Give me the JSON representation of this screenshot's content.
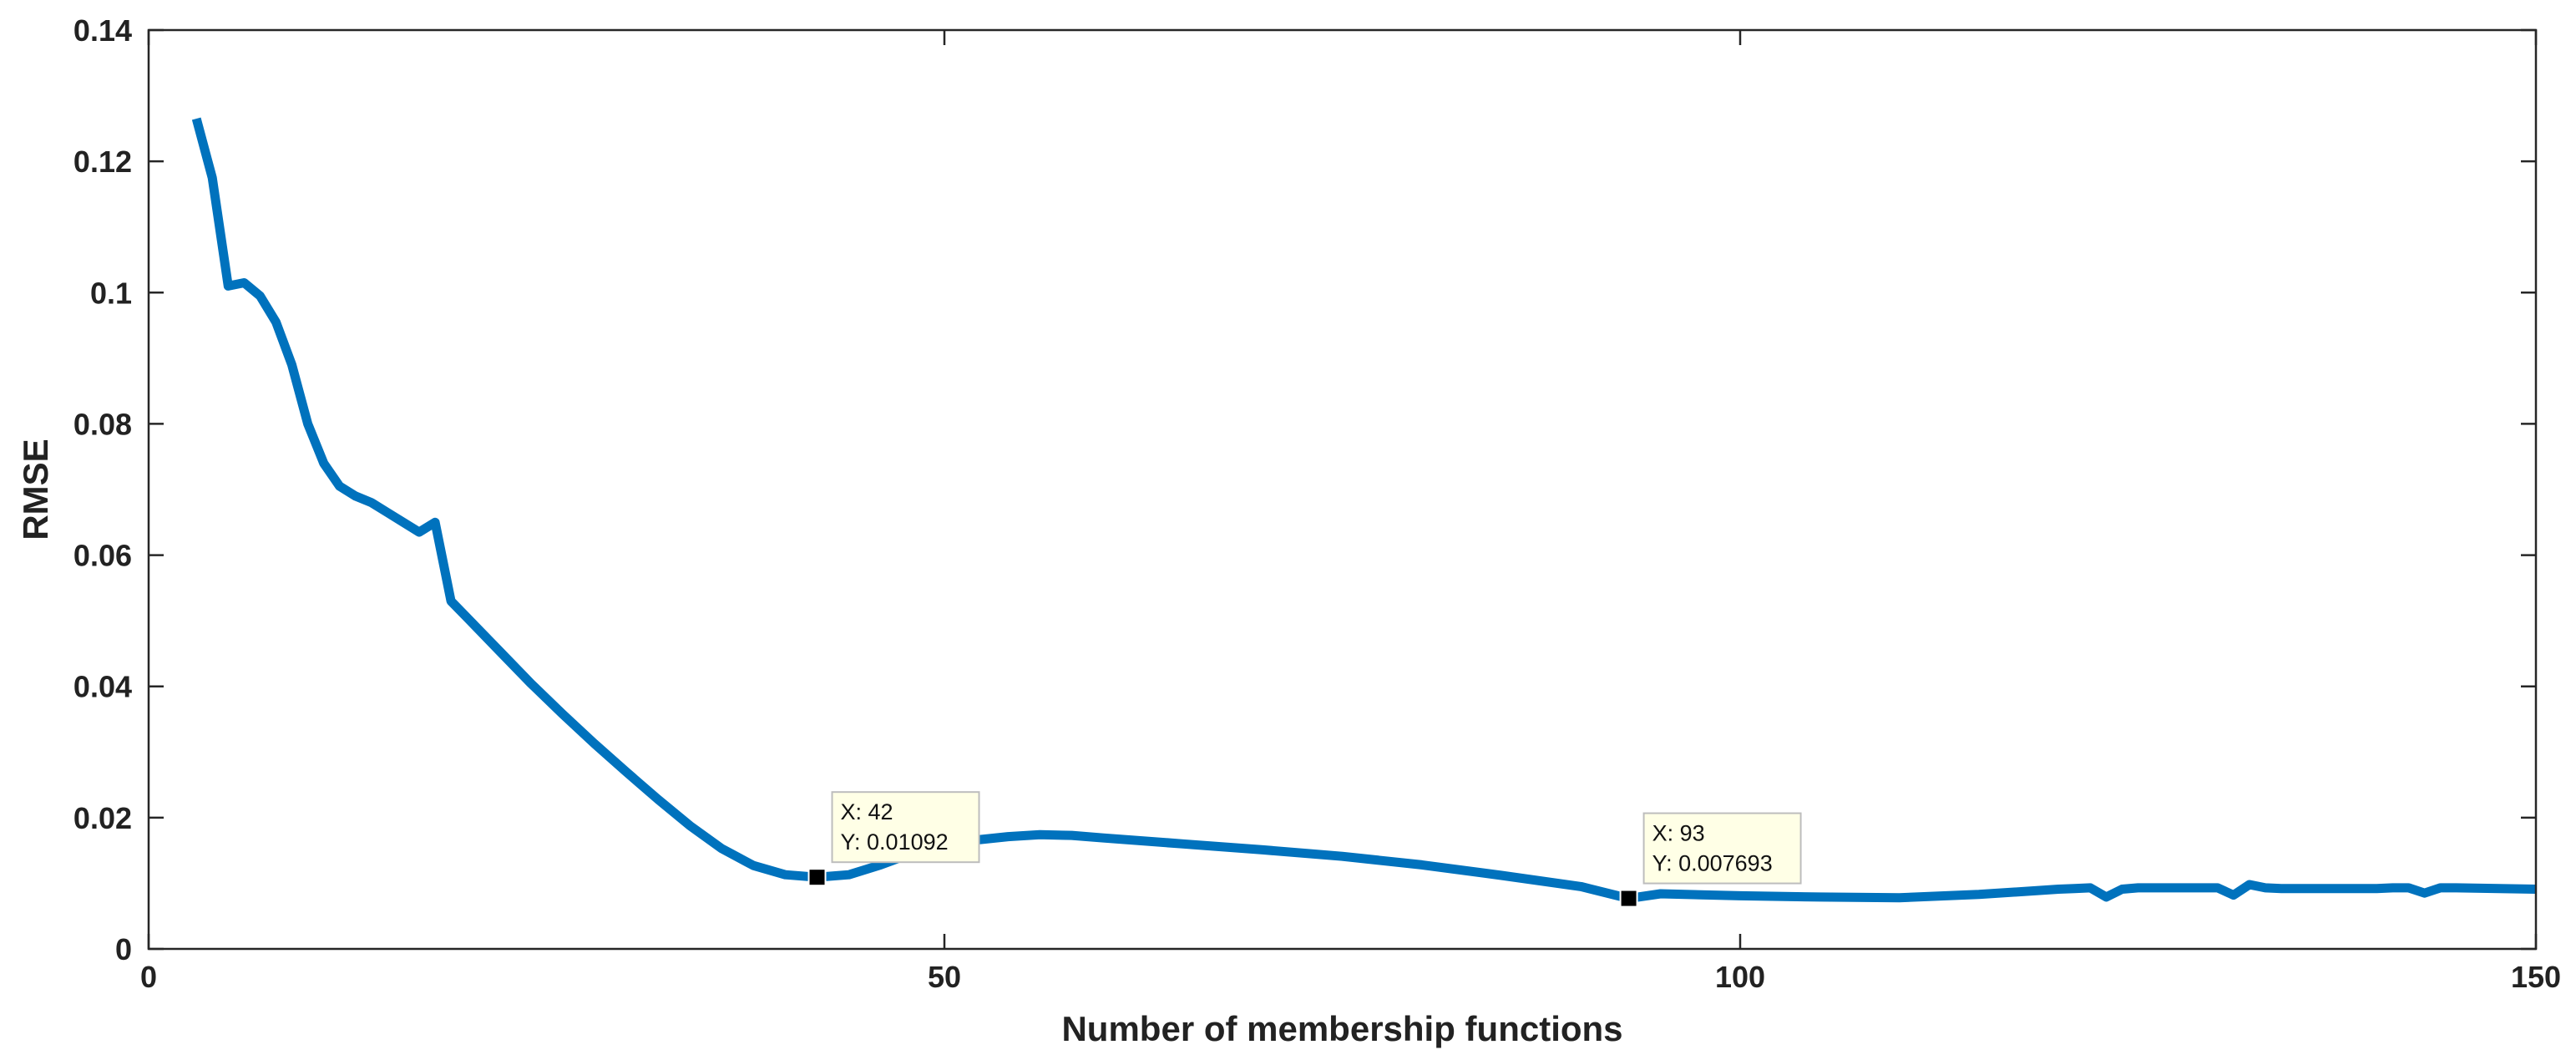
{
  "chart_data": {
    "type": "line",
    "title": "",
    "xlabel": "Number of membership functions",
    "ylabel": "RMSE",
    "xlim": [
      0,
      150
    ],
    "ylim": [
      0,
      0.14
    ],
    "xticks": [
      0,
      50,
      100,
      150
    ],
    "xtick_labels": [
      "0",
      "50",
      "100",
      "150"
    ],
    "yticks": [
      0,
      0.02,
      0.04,
      0.06,
      0.08,
      0.1,
      0.12,
      0.14
    ],
    "ytick_labels": [
      "0",
      "0.02",
      "0.04",
      "0.06",
      "0.08",
      "0.1",
      "0.12",
      "0.14"
    ],
    "grid": false,
    "series_color": "#0072BD",
    "series": [
      {
        "x": [
          3,
          4,
          5,
          6,
          7,
          8,
          9,
          10,
          11,
          12,
          13,
          14,
          15,
          16,
          17,
          18,
          19,
          20,
          22,
          24,
          26,
          28,
          30,
          32,
          34,
          36,
          38,
          40,
          42,
          44,
          46,
          48,
          50,
          52,
          54,
          56,
          58,
          60,
          65,
          70,
          75,
          80,
          85,
          90,
          93,
          95,
          100,
          105,
          110,
          115,
          120,
          121,
          122,
          123,
          124,
          125,
          126,
          127,
          128,
          129,
          130,
          131,
          132,
          133,
          134,
          135,
          140,
          141,
          142,
          143,
          144,
          145,
          150
        ],
        "y": [
          0.1265,
          0.1175,
          0.101,
          0.1015,
          0.0995,
          0.0955,
          0.089,
          0.08,
          0.074,
          0.0705,
          0.069,
          0.068,
          0.0665,
          0.065,
          0.0635,
          0.065,
          0.053,
          0.0505,
          0.0455,
          0.0405,
          0.0358,
          0.0313,
          0.027,
          0.0228,
          0.0188,
          0.0153,
          0.0127,
          0.0113,
          0.01092,
          0.0113,
          0.0128,
          0.0146,
          0.0158,
          0.0166,
          0.0171,
          0.0174,
          0.0173,
          0.0169,
          0.016,
          0.0151,
          0.0141,
          0.0128,
          0.0112,
          0.0095,
          0.007693,
          0.0084,
          0.0081,
          0.0079,
          0.0078,
          0.0083,
          0.0091,
          0.0092,
          0.0093,
          0.0079,
          0.0091,
          0.0093,
          0.0093,
          0.0093,
          0.0093,
          0.0093,
          0.0093,
          0.0082,
          0.0098,
          0.0093,
          0.0092,
          0.0092,
          0.0092,
          0.0093,
          0.0093,
          0.0085,
          0.0093,
          0.0093,
          0.0091
        ]
      }
    ],
    "annotations": [
      {
        "x": 42,
        "y": 0.01092,
        "line1": "X: 42",
        "line2": "Y: 0.01092"
      },
      {
        "x": 93,
        "y": 0.007693,
        "line1": "X: 93",
        "line2": "Y: 0.007693"
      }
    ]
  }
}
